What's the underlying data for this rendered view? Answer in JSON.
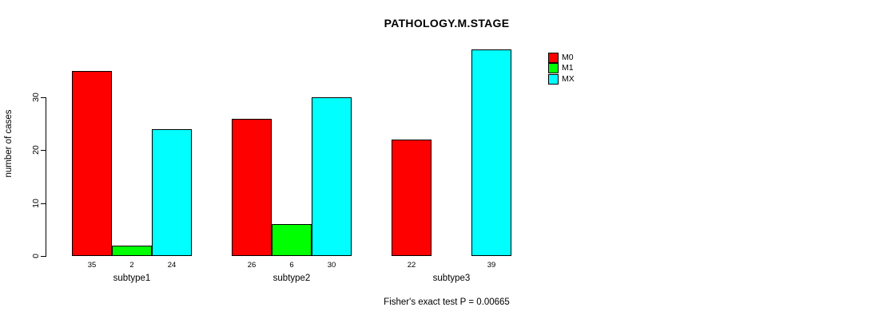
{
  "chart_data": {
    "type": "bar",
    "title": "PATHOLOGY.M.STAGE",
    "ylabel": "number of cases",
    "xlabel": "",
    "categories": [
      "subtype1",
      "subtype2",
      "subtype3"
    ],
    "series": [
      {
        "name": "M0",
        "color": "#ff0000",
        "values": [
          35,
          26,
          22
        ]
      },
      {
        "name": "M1",
        "color": "#00ff00",
        "values": [
          2,
          6,
          null
        ]
      },
      {
        "name": "MX",
        "color": "#00ffff",
        "values": [
          24,
          30,
          39
        ]
      }
    ],
    "yticks": [
      0,
      10,
      20,
      30
    ],
    "ylim": [
      0,
      39
    ],
    "grid": false,
    "legend_position": "top-right",
    "value_labels_shown": true,
    "annotation": "Fisher's exact test P = 0.00665"
  },
  "colors": {
    "background": "#ffffff",
    "axis": "#000000",
    "text": "#000000"
  }
}
